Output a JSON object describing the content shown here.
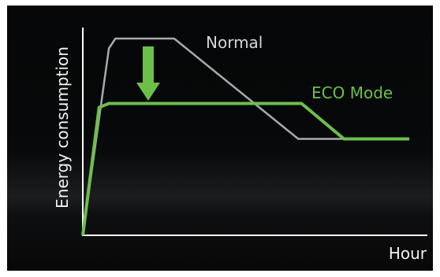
{
  "chart_data": {
    "type": "line",
    "xlabel": "Hour",
    "ylabel": "Energy consumption",
    "xlim": [
      0,
      100
    ],
    "ylim": [
      0,
      100
    ],
    "grid": false,
    "legend": "inline-labels",
    "series": [
      {
        "name": "Normal",
        "color": "#a7a9ac",
        "x": [
          0,
          8,
          10,
          28,
          66,
          100
        ],
        "y": [
          0,
          95,
          100,
          100,
          49,
          49
        ]
      },
      {
        "name": "ECO Mode",
        "color": "#6cc04a",
        "x": [
          0,
          5,
          8,
          67,
          80,
          100
        ],
        "y": [
          0,
          65,
          67,
          67,
          49,
          49
        ]
      }
    ],
    "arrow": {
      "direction": "down",
      "color": "#6cc04a"
    }
  }
}
